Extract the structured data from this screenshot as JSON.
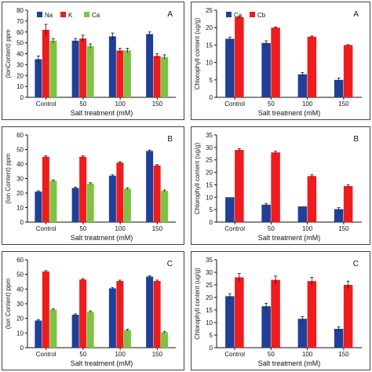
{
  "chart_data": [
    {
      "type": "bar",
      "panel_letter": "A",
      "categories": [
        "Control",
        "50",
        "100",
        "150"
      ],
      "series": [
        {
          "name": "Na",
          "color": "#1f3f99",
          "values": [
            35,
            52,
            56,
            58
          ],
          "errors": [
            3,
            2,
            3,
            2
          ]
        },
        {
          "name": "K",
          "color": "#ee1c1c",
          "values": [
            62,
            54,
            43,
            38
          ],
          "errors": [
            5,
            3,
            2,
            2
          ]
        },
        {
          "name": "Ca",
          "color": "#7dc242",
          "values": [
            52,
            47,
            43,
            37
          ],
          "errors": [
            2,
            2,
            2,
            2
          ]
        }
      ],
      "xlabel": "Salt treatment (mM)",
      "ylabel": "(IonContent) ppm",
      "ylim": [
        0,
        80
      ],
      "yticks": [
        0,
        10,
        20,
        30,
        40,
        50,
        60,
        70,
        80
      ],
      "legend": "top-left"
    },
    {
      "type": "bar",
      "panel_letter": "A",
      "categories": [
        "Control",
        "50",
        "100",
        "150"
      ],
      "series": [
        {
          "name": "Ca",
          "color": "#1f3f99",
          "values": [
            16.8,
            15.6,
            6.6,
            5.0
          ],
          "errors": [
            0.5,
            0.6,
            0.5,
            0.5
          ]
        },
        {
          "name": "Cb",
          "color": "#ee1c1c",
          "values": [
            23,
            20,
            17.4,
            15
          ],
          "errors": [
            0.2,
            0.2,
            0.2,
            0.1
          ]
        }
      ],
      "xlabel": "Salt treatment (mM)",
      "ylabel": "Chlorophyll content (ug/g)",
      "ylim": [
        0,
        25
      ],
      "yticks": [
        0,
        5,
        10,
        15,
        20,
        25
      ],
      "legend": "top-left"
    },
    {
      "type": "bar",
      "panel_letter": "B",
      "categories": [
        "Control",
        "50",
        "100",
        "150"
      ],
      "series": [
        {
          "name": "Na",
          "color": "#1f3f99",
          "values": [
            21,
            23.5,
            32,
            49
          ],
          "errors": [
            0.6,
            0.6,
            0.6,
            0.6
          ]
        },
        {
          "name": "K",
          "color": "#ee1c1c",
          "values": [
            45,
            45,
            41,
            39
          ],
          "errors": [
            0.6,
            0.6,
            0.6,
            0.6
          ]
        },
        {
          "name": "Ca",
          "color": "#7dc242",
          "values": [
            28.5,
            26.5,
            23,
            21.5
          ],
          "errors": [
            0.6,
            0.6,
            0.6,
            0.6
          ]
        }
      ],
      "xlabel": "Salt treatment (mM)",
      "ylabel": "(Ion Content) ppm",
      "ylim": [
        0,
        60
      ],
      "yticks": [
        0,
        10,
        20,
        30,
        40,
        50,
        60
      ]
    },
    {
      "type": "bar",
      "panel_letter": "B",
      "categories": [
        "Control",
        "50",
        "100",
        "150"
      ],
      "series": [
        {
          "name": "Ca",
          "color": "#1f3f99",
          "values": [
            10,
            7,
            6.3,
            5.2
          ],
          "errors": [
            0,
            0.5,
            0,
            0.6
          ]
        },
        {
          "name": "Cb",
          "color": "#ee1c1c",
          "values": [
            29,
            28,
            18.5,
            14.5
          ],
          "errors": [
            0.5,
            0.5,
            0.5,
            0.5
          ]
        }
      ],
      "xlabel": "Salt treatment (mM)",
      "ylabel": "Chlorophyll content (ug/g)",
      "ylim": [
        0,
        35
      ],
      "yticks": [
        0,
        5,
        10,
        15,
        20,
        25,
        30,
        35
      ]
    },
    {
      "type": "bar",
      "panel_letter": "C",
      "categories": [
        "Control",
        "50",
        "100",
        "150"
      ],
      "series": [
        {
          "name": "Na",
          "color": "#1f3f99",
          "values": [
            18.5,
            22.5,
            40.5,
            48.5
          ],
          "errors": [
            0.6,
            0.6,
            0.6,
            0.6
          ]
        },
        {
          "name": "K",
          "color": "#ee1c1c",
          "values": [
            52,
            46.5,
            45.5,
            45.5
          ],
          "errors": [
            0.6,
            0.6,
            0.6,
            0.6
          ]
        },
        {
          "name": "Ca",
          "color": "#7dc242",
          "values": [
            26,
            24.5,
            12,
            10.5
          ],
          "errors": [
            0.6,
            0.6,
            0.6,
            0.6
          ]
        }
      ],
      "xlabel": "Salt treatment (mM)",
      "ylabel": "(Ion Content) ppm",
      "ylim": [
        0,
        60
      ],
      "yticks": [
        0,
        10,
        20,
        30,
        40,
        50,
        60
      ]
    },
    {
      "type": "bar",
      "panel_letter": "C",
      "categories": [
        "Control",
        "50",
        "100",
        "150"
      ],
      "series": [
        {
          "name": "Ca",
          "color": "#1f3f99",
          "values": [
            20.5,
            16.5,
            11.5,
            7.5
          ],
          "errors": [
            1,
            1.2,
            0.8,
            0.8
          ]
        },
        {
          "name": "Cb",
          "color": "#ee1c1c",
          "values": [
            28,
            27,
            26.5,
            25
          ],
          "errors": [
            1.5,
            1.5,
            1.5,
            1.5
          ]
        }
      ],
      "xlabel": "Salt treatment (mM)",
      "ylabel": "Chlorophyll content (ug/g)",
      "ylim": [
        0,
        35
      ],
      "yticks": [
        0,
        5,
        10,
        15,
        20,
        25,
        30,
        35
      ]
    }
  ]
}
